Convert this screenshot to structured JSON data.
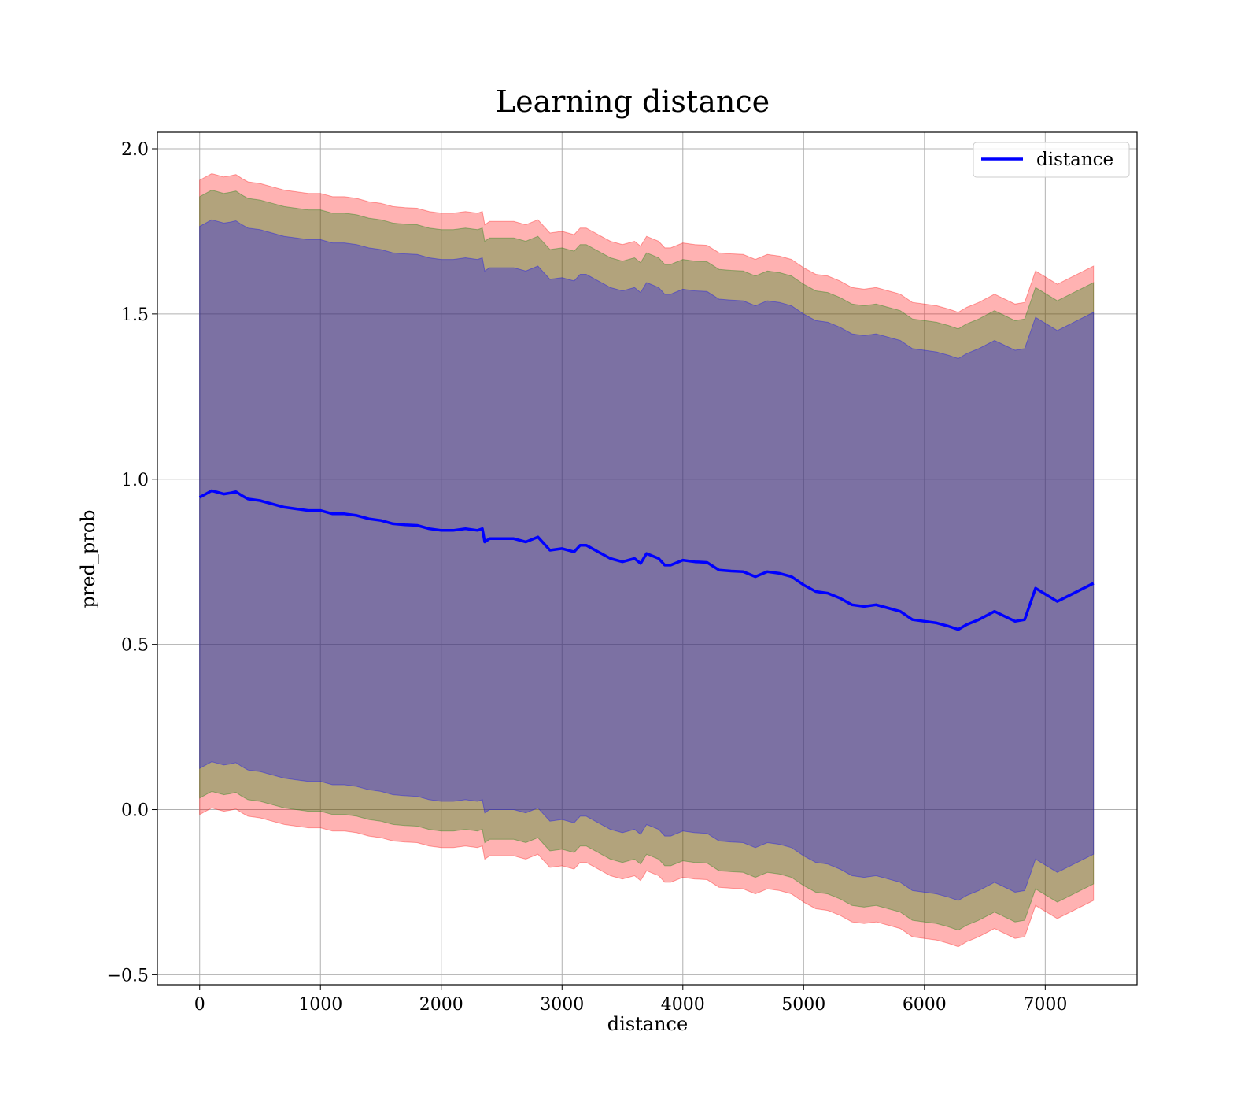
{
  "chart_data": {
    "type": "line",
    "title": "Learning distance",
    "xlabel": "distance",
    "ylabel": "pred_prob",
    "xlim": [
      -350,
      7760
    ],
    "ylim": [
      -0.53,
      2.05
    ],
    "xticks": [
      0,
      1000,
      2000,
      3000,
      4000,
      5000,
      6000,
      7000
    ],
    "yticks": [
      -0.5,
      0.0,
      0.5,
      1.0,
      1.5,
      2.0
    ],
    "xtick_labels": [
      "0",
      "1000",
      "2000",
      "3000",
      "4000",
      "5000",
      "6000",
      "7000"
    ],
    "ytick_labels": [
      "−0.5",
      "0.0",
      "0.5",
      "1.0",
      "1.5",
      "2.0"
    ],
    "grid": true,
    "legend_position": "top-right",
    "series": [
      {
        "name": "distance",
        "color": "#0000ff",
        "x": [
          0,
          50,
          100,
          150,
          200,
          250,
          300,
          350,
          400,
          500,
          600,
          700,
          800,
          900,
          1000,
          1100,
          1200,
          1300,
          1400,
          1500,
          1600,
          1700,
          1800,
          1900,
          2000,
          2100,
          2200,
          2300,
          2340,
          2360,
          2400,
          2500,
          2600,
          2700,
          2800,
          2850,
          2900,
          3000,
          3100,
          3150,
          3200,
          3300,
          3400,
          3500,
          3600,
          3650,
          3700,
          3800,
          3850,
          3900,
          4000,
          4100,
          4200,
          4300,
          4400,
          4500,
          4600,
          4700,
          4800,
          4900,
          5000,
          5100,
          5200,
          5300,
          5400,
          5500,
          5600,
          5700,
          5800,
          5900,
          6000,
          6100,
          6200,
          6280,
          6350,
          6450,
          6580,
          6750,
          6830,
          6920,
          7100,
          7400
        ],
        "y": [
          0.945,
          0.955,
          0.965,
          0.96,
          0.955,
          0.958,
          0.962,
          0.95,
          0.94,
          0.935,
          0.925,
          0.915,
          0.91,
          0.905,
          0.905,
          0.895,
          0.895,
          0.89,
          0.88,
          0.875,
          0.865,
          0.862,
          0.86,
          0.85,
          0.845,
          0.845,
          0.85,
          0.845,
          0.85,
          0.81,
          0.82,
          0.82,
          0.82,
          0.81,
          0.825,
          0.805,
          0.785,
          0.79,
          0.78,
          0.8,
          0.8,
          0.78,
          0.76,
          0.75,
          0.76,
          0.745,
          0.775,
          0.76,
          0.74,
          0.74,
          0.755,
          0.75,
          0.748,
          0.725,
          0.722,
          0.72,
          0.705,
          0.72,
          0.715,
          0.705,
          0.68,
          0.66,
          0.655,
          0.64,
          0.62,
          0.615,
          0.62,
          0.61,
          0.6,
          0.575,
          0.57,
          0.565,
          0.555,
          0.545,
          0.56,
          0.575,
          0.6,
          0.57,
          0.575,
          0.67,
          0.63,
          0.685
        ]
      }
    ],
    "bands": [
      {
        "color": "#ff0000",
        "opacity": 0.3,
        "half_width_start": 0.96,
        "half_width_end": 0.96
      },
      {
        "color": "#008000",
        "opacity": 0.3,
        "half_width_start": 0.91,
        "half_width_end": 0.91
      },
      {
        "color": "#0000ff",
        "opacity": 0.3,
        "half_width_start": 0.82,
        "half_width_end": 0.82
      }
    ]
  }
}
